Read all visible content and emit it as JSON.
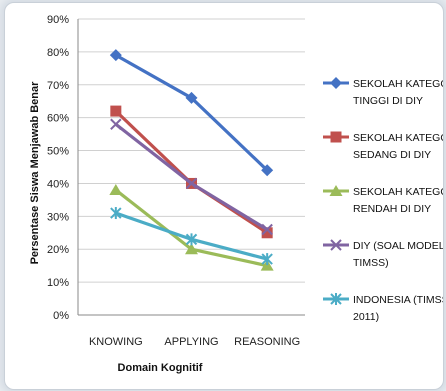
{
  "chart_data": {
    "type": "line",
    "categories": [
      "KNOWING",
      "APPLYING",
      "REASONING"
    ],
    "xlabel": "Domain Kognitif",
    "ylabel": "Persentase Siswa Menjawab Benar",
    "ylim": [
      0,
      90
    ],
    "yticks": [
      "0%",
      "10%",
      "20%",
      "30%",
      "40%",
      "50%",
      "60%",
      "70%",
      "80%",
      "90%"
    ],
    "grid": true,
    "legend_position": "right",
    "series": [
      {
        "name_lines": [
          "SEKOLAH KATEGORI",
          "TINGGI DI DIY"
        ],
        "values": [
          79,
          66,
          44
        ],
        "color": "#4472c4",
        "marker": "diamond"
      },
      {
        "name_lines": [
          "SEKOLAH KATEGORI",
          "SEDANG DI DIY"
        ],
        "values": [
          62,
          40,
          25
        ],
        "color": "#c0504d",
        "marker": "square"
      },
      {
        "name_lines": [
          "SEKOLAH KATEGORI",
          "RENDAH DI DIY"
        ],
        "values": [
          38,
          20,
          15
        ],
        "color": "#9bbb59",
        "marker": "triangle"
      },
      {
        "name_lines": [
          "DIY (SOAL MODEL",
          "TIMSS)"
        ],
        "values": [
          58,
          40,
          26
        ],
        "color": "#8064a2",
        "marker": "x"
      },
      {
        "name_lines": [
          "INDONESIA (TIMSS",
          "2011)"
        ],
        "values": [
          31,
          23,
          17
        ],
        "color": "#4bacc6",
        "marker": "star"
      }
    ]
  }
}
